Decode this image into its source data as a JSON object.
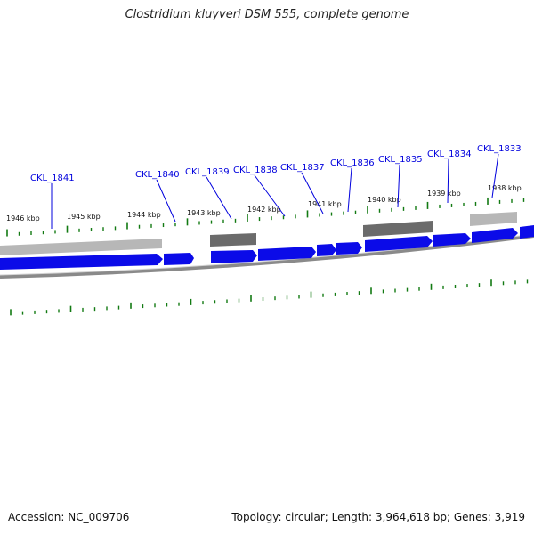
{
  "title": "Clostridium kluyveri DSM 555, complete genome",
  "footer": {
    "accession": "Accession: NC_009706",
    "stats": "Topology: circular; Length: 3,964,618 bp; Genes: 3,919"
  },
  "colors": {
    "forward_gene": "#0b0be8",
    "reverse_gene_dark": "#6b6b6b",
    "reverse_gene_light": "#b7b7b7",
    "backbone": "#8a8a8a",
    "tick": "#127a12",
    "label": "#0000dd"
  },
  "scale_labels": [
    "1946 kbp",
    "1945 kbp",
    "1944 kbp",
    "1943 kbp",
    "1942 kbp",
    "1941 kbp",
    "1940 kbp",
    "1939 kbp",
    "1938 kbp"
  ],
  "gene_labels": [
    "CKL_1841",
    "CKL_1840",
    "CKL_1839",
    "CKL_1838",
    "CKL_1837",
    "CKL_1836",
    "CKL_1835",
    "CKL_1834",
    "CKL_1833"
  ]
}
